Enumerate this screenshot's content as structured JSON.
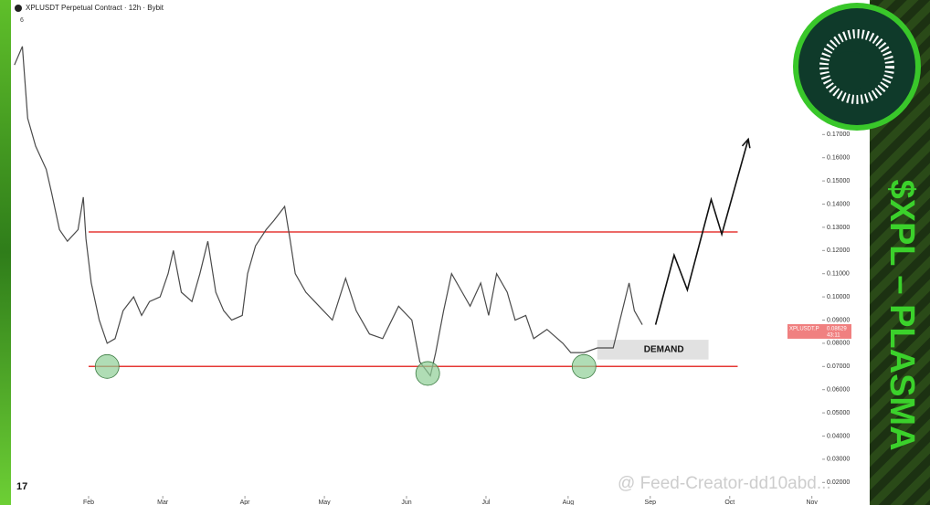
{
  "chart_data": {
    "type": "line",
    "title": "XPLUSDT Perpetual Contract · 12h · Bybit",
    "indicator_count": "6",
    "xlim": [
      1.7,
      307.9
    ],
    "ylim": [
      0.015,
      0.228
    ],
    "xticks": [
      {
        "value": 31,
        "label": "Feb"
      },
      {
        "value": 59,
        "label": "Mar"
      },
      {
        "value": 90,
        "label": "Apr"
      },
      {
        "value": 120,
        "label": "May"
      },
      {
        "value": 151,
        "label": "Jun"
      },
      {
        "value": 181,
        "label": "Jul"
      },
      {
        "value": 212,
        "label": "Aug"
      },
      {
        "value": 243,
        "label": "Sep"
      },
      {
        "value": 273,
        "label": "Oct"
      },
      {
        "value": 304,
        "label": "Nov"
      }
    ],
    "yticks": [
      {
        "value": 0.17,
        "label": "0.17000"
      },
      {
        "value": 0.16,
        "label": "0.16000"
      },
      {
        "value": 0.15,
        "label": "0.15000"
      },
      {
        "value": 0.14,
        "label": "0.14000"
      },
      {
        "value": 0.13,
        "label": "0.13000"
      },
      {
        "value": 0.12,
        "label": "0.12000"
      },
      {
        "value": 0.11,
        "label": "0.11000"
      },
      {
        "value": 0.1,
        "label": "0.10000"
      },
      {
        "value": 0.09,
        "label": "0.09000"
      },
      {
        "value": 0.08,
        "label": "0.08000"
      },
      {
        "value": 0.07,
        "label": "0.07000"
      },
      {
        "value": 0.06,
        "label": "0.06000"
      },
      {
        "value": 0.05,
        "label": "0.05000"
      },
      {
        "value": 0.04,
        "label": "0.04000"
      },
      {
        "value": 0.03,
        "label": "0.03000"
      },
      {
        "value": 0.02,
        "label": "0.02000"
      }
    ],
    "series": [
      {
        "color": "#4a4a4a",
        "x": [
          3,
          6,
          8,
          11,
          15,
          17,
          20,
          23,
          27,
          29,
          30,
          32,
          35,
          38,
          41,
          44,
          48,
          51,
          54,
          58,
          61,
          63,
          66,
          70,
          73,
          76,
          79,
          82,
          85,
          89,
          91,
          94,
          98,
          101,
          105,
          107,
          109,
          113,
          118,
          123,
          128,
          132,
          137,
          142,
          148,
          153,
          156,
          160,
          162,
          165,
          168,
          172,
          175,
          179,
          182,
          185,
          189,
          192,
          196,
          199,
          204,
          210,
          213,
          218,
          223,
          229,
          232,
          235,
          237,
          240
        ],
        "values": [
          0.2,
          0.208,
          0.177,
          0.165,
          0.155,
          0.145,
          0.129,
          0.124,
          0.129,
          0.143,
          0.125,
          0.106,
          0.09,
          0.08,
          0.082,
          0.094,
          0.1,
          0.092,
          0.098,
          0.1,
          0.11,
          0.12,
          0.102,
          0.098,
          0.11,
          0.124,
          0.102,
          0.094,
          0.09,
          0.092,
          0.11,
          0.122,
          0.129,
          0.133,
          0.139,
          0.125,
          0.11,
          0.102,
          0.096,
          0.09,
          0.108,
          0.094,
          0.084,
          0.082,
          0.096,
          0.09,
          0.072,
          0.066,
          0.076,
          0.094,
          0.11,
          0.102,
          0.096,
          0.106,
          0.092,
          0.11,
          0.102,
          0.09,
          0.092,
          0.082,
          0.086,
          0.08,
          0.076,
          0.076,
          0.078,
          0.078,
          0.092,
          0.106,
          0.094,
          0.088
        ]
      }
    ],
    "levels": [
      {
        "value": 0.128,
        "x": [
          31,
          276
        ],
        "color": "#e53935"
      },
      {
        "value": 0.07,
        "x": [
          31,
          276
        ],
        "color": "#e53935"
      }
    ],
    "markers": [
      {
        "x": 38,
        "y": 0.07,
        "color": "#8fcf95"
      },
      {
        "x": 159,
        "y": 0.067,
        "color": "#8fcf95"
      },
      {
        "x": 218,
        "y": 0.07,
        "color": "#8fcf95"
      }
    ],
    "zone": {
      "label": "DEMAND",
      "x": [
        223,
        265
      ],
      "y": [
        0.073,
        0.0815
      ],
      "color": "#d9d9d9"
    },
    "projection": {
      "color": "#111111",
      "x": [
        245,
        252,
        257,
        266,
        270,
        280
      ],
      "values": [
        0.088,
        0.118,
        0.103,
        0.142,
        0.127,
        0.168
      ]
    },
    "last_price": {
      "symbol": "XPLUSDT.P",
      "value": 0.08629,
      "countdown": "43:11",
      "color": "#f08080"
    },
    "banner": "$XPL – PLASMA",
    "watermark": "@ Feed-Creator-dd10abd..."
  }
}
